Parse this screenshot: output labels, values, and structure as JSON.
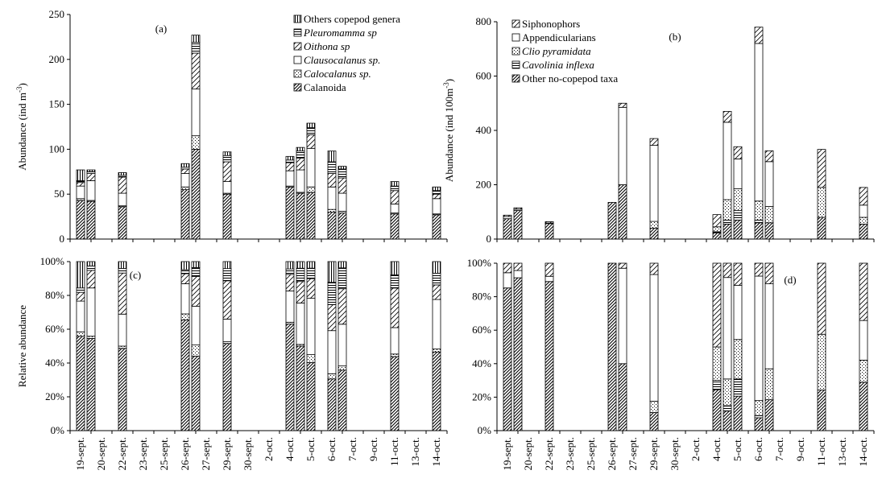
{
  "dates": [
    "19-sept.",
    "20-sept.",
    "22-sept.",
    "23-sept.",
    "25-sept.",
    "26-sept.",
    "27-sept.",
    "29-sept.",
    "30-sept.",
    "2-oct.",
    "4-oct.",
    "5-oct.",
    "6-oct.",
    "7-oct.",
    "9-oct.",
    "11-oct.",
    "13-oct.",
    "14-oct."
  ],
  "chart_data": [
    {
      "id": "a",
      "panel_label": "(a)",
      "type": "bar",
      "stacked": true,
      "ylabel": "Abundance (ind m-3)",
      "ylabel_main": "Abundance (ind m",
      "ylabel_sup": "-3",
      "ylabel_close": ")",
      "ylim": [
        0,
        250
      ],
      "yticks": [
        0,
        50,
        100,
        150,
        200,
        250
      ],
      "ytick_labels": [
        "0",
        "50",
        "100",
        "150",
        "200",
        "250"
      ],
      "legend_position": "top-right",
      "series": [
        {
          "name": "Calanoida",
          "italic": false,
          "pattern": "diag-dense"
        },
        {
          "name": "Calocalanus sp.",
          "italic": true,
          "pattern": "dots"
        },
        {
          "name": "Clausocalanus sp.",
          "italic": true,
          "pattern": "empty"
        },
        {
          "name": "Oithona sp",
          "italic": true,
          "pattern": "diag-sparse"
        },
        {
          "name": "Pleuromamma sp",
          "italic": true,
          "pattern": "horizontal"
        },
        {
          "name": "Others copepod genera",
          "italic": false,
          "pattern": "vertical"
        }
      ],
      "bars": [
        {
          "date_index": 0.3,
          "values": [
            43,
            2,
            14,
            4,
            2,
            12
          ]
        },
        {
          "date_index": 0.8,
          "values": [
            42,
            1,
            22,
            8,
            2,
            2
          ]
        },
        {
          "date_index": 2.3,
          "values": [
            36,
            1,
            14,
            18,
            2,
            3
          ]
        },
        {
          "date_index": 5.3,
          "values": [
            55,
            3,
            15,
            5,
            2,
            4
          ]
        },
        {
          "date_index": 5.8,
          "values": [
            100,
            15,
            52,
            40,
            12,
            8
          ]
        },
        {
          "date_index": 7.3,
          "values": [
            50,
            1,
            13,
            22,
            7,
            4
          ]
        },
        {
          "date_index": 10.3,
          "values": [
            58,
            1,
            17,
            9,
            3,
            4
          ]
        },
        {
          "date_index": 10.8,
          "values": [
            51,
            1,
            25,
            13,
            8,
            4
          ]
        },
        {
          "date_index": 11.3,
          "values": [
            52,
            6,
            43,
            15,
            8,
            5
          ]
        },
        {
          "date_index": 12.3,
          "values": [
            30,
            3,
            25,
            15,
            13,
            12
          ]
        },
        {
          "date_index": 12.8,
          "values": [
            29,
            2,
            20,
            17,
            10,
            3
          ]
        },
        {
          "date_index": 15.3,
          "values": [
            28,
            1,
            10,
            15,
            5,
            5
          ]
        },
        {
          "date_index": 17.3,
          "values": [
            27,
            1,
            17,
            5,
            4,
            4
          ]
        }
      ]
    },
    {
      "id": "b",
      "panel_label": "(b)",
      "type": "bar",
      "stacked": true,
      "ylabel": "Abundance (ind 100m-3)",
      "ylabel_main": "Abundance (ind 100m",
      "ylabel_sup": "-3",
      "ylabel_close": ")",
      "ylim": [
        0,
        800
      ],
      "yticks": [
        0,
        200,
        400,
        600,
        800
      ],
      "ytick_labels": [
        "0",
        "200",
        "400",
        "600",
        "800"
      ],
      "legend_position": "top-left",
      "series": [
        {
          "name": "Other no-copepod taxa",
          "italic": false,
          "pattern": "diag-dense"
        },
        {
          "name": "Cavolinia inflexa",
          "italic": true,
          "pattern": "horizontal"
        },
        {
          "name": "Clio pyramidata",
          "italic": true,
          "pattern": "dots"
        },
        {
          "name": "Appendicularians",
          "italic": false,
          "pattern": "empty"
        },
        {
          "name": "Siphonophors",
          "italic": false,
          "pattern": "diag-sparse"
        }
      ],
      "bars": [
        {
          "date_index": 0.3,
          "values": [
            75,
            0,
            0,
            8,
            5
          ]
        },
        {
          "date_index": 0.8,
          "values": [
            105,
            0,
            0,
            5,
            5
          ]
        },
        {
          "date_index": 2.3,
          "values": [
            57,
            0,
            0,
            2,
            5
          ]
        },
        {
          "date_index": 5.3,
          "values": [
            135,
            0,
            0,
            0,
            0
          ]
        },
        {
          "date_index": 5.8,
          "values": [
            200,
            0,
            0,
            285,
            15
          ]
        },
        {
          "date_index": 7.3,
          "values": [
            40,
            0,
            25,
            280,
            25
          ]
        },
        {
          "date_index": 10.3,
          "values": [
            22,
            5,
            18,
            0,
            45
          ]
        },
        {
          "date_index": 10.8,
          "values": [
            55,
            15,
            75,
            285,
            40
          ]
        },
        {
          "date_index": 11.3,
          "values": [
            70,
            35,
            80,
            110,
            45
          ]
        },
        {
          "date_index": 12.3,
          "values": [
            60,
            10,
            70,
            580,
            60
          ]
        },
        {
          "date_index": 12.8,
          "values": [
            60,
            0,
            60,
            165,
            40
          ]
        },
        {
          "date_index": 15.3,
          "values": [
            80,
            0,
            110,
            0,
            140
          ]
        },
        {
          "date_index": 17.3,
          "values": [
            55,
            0,
            25,
            45,
            65
          ]
        }
      ]
    },
    {
      "id": "c",
      "panel_label": "(c)",
      "type": "bar",
      "stacked": true,
      "percent": true,
      "ylabel": "Relative abundance",
      "ylim": [
        0,
        100
      ],
      "yticks": [
        0,
        20,
        40,
        60,
        80,
        100
      ],
      "ytick_labels": [
        "0%",
        "20%",
        "40%",
        "60%",
        "80%",
        "100%"
      ],
      "source_panel": "a"
    },
    {
      "id": "d",
      "panel_label": "(d)",
      "type": "bar",
      "stacked": true,
      "percent": true,
      "ylabel": "",
      "ylim": [
        0,
        100
      ],
      "yticks": [
        0,
        20,
        40,
        60,
        80,
        100
      ],
      "ytick_labels": [
        "0%",
        "20%",
        "40%",
        "60%",
        "80%",
        "100%"
      ],
      "source_panel": "b"
    }
  ]
}
